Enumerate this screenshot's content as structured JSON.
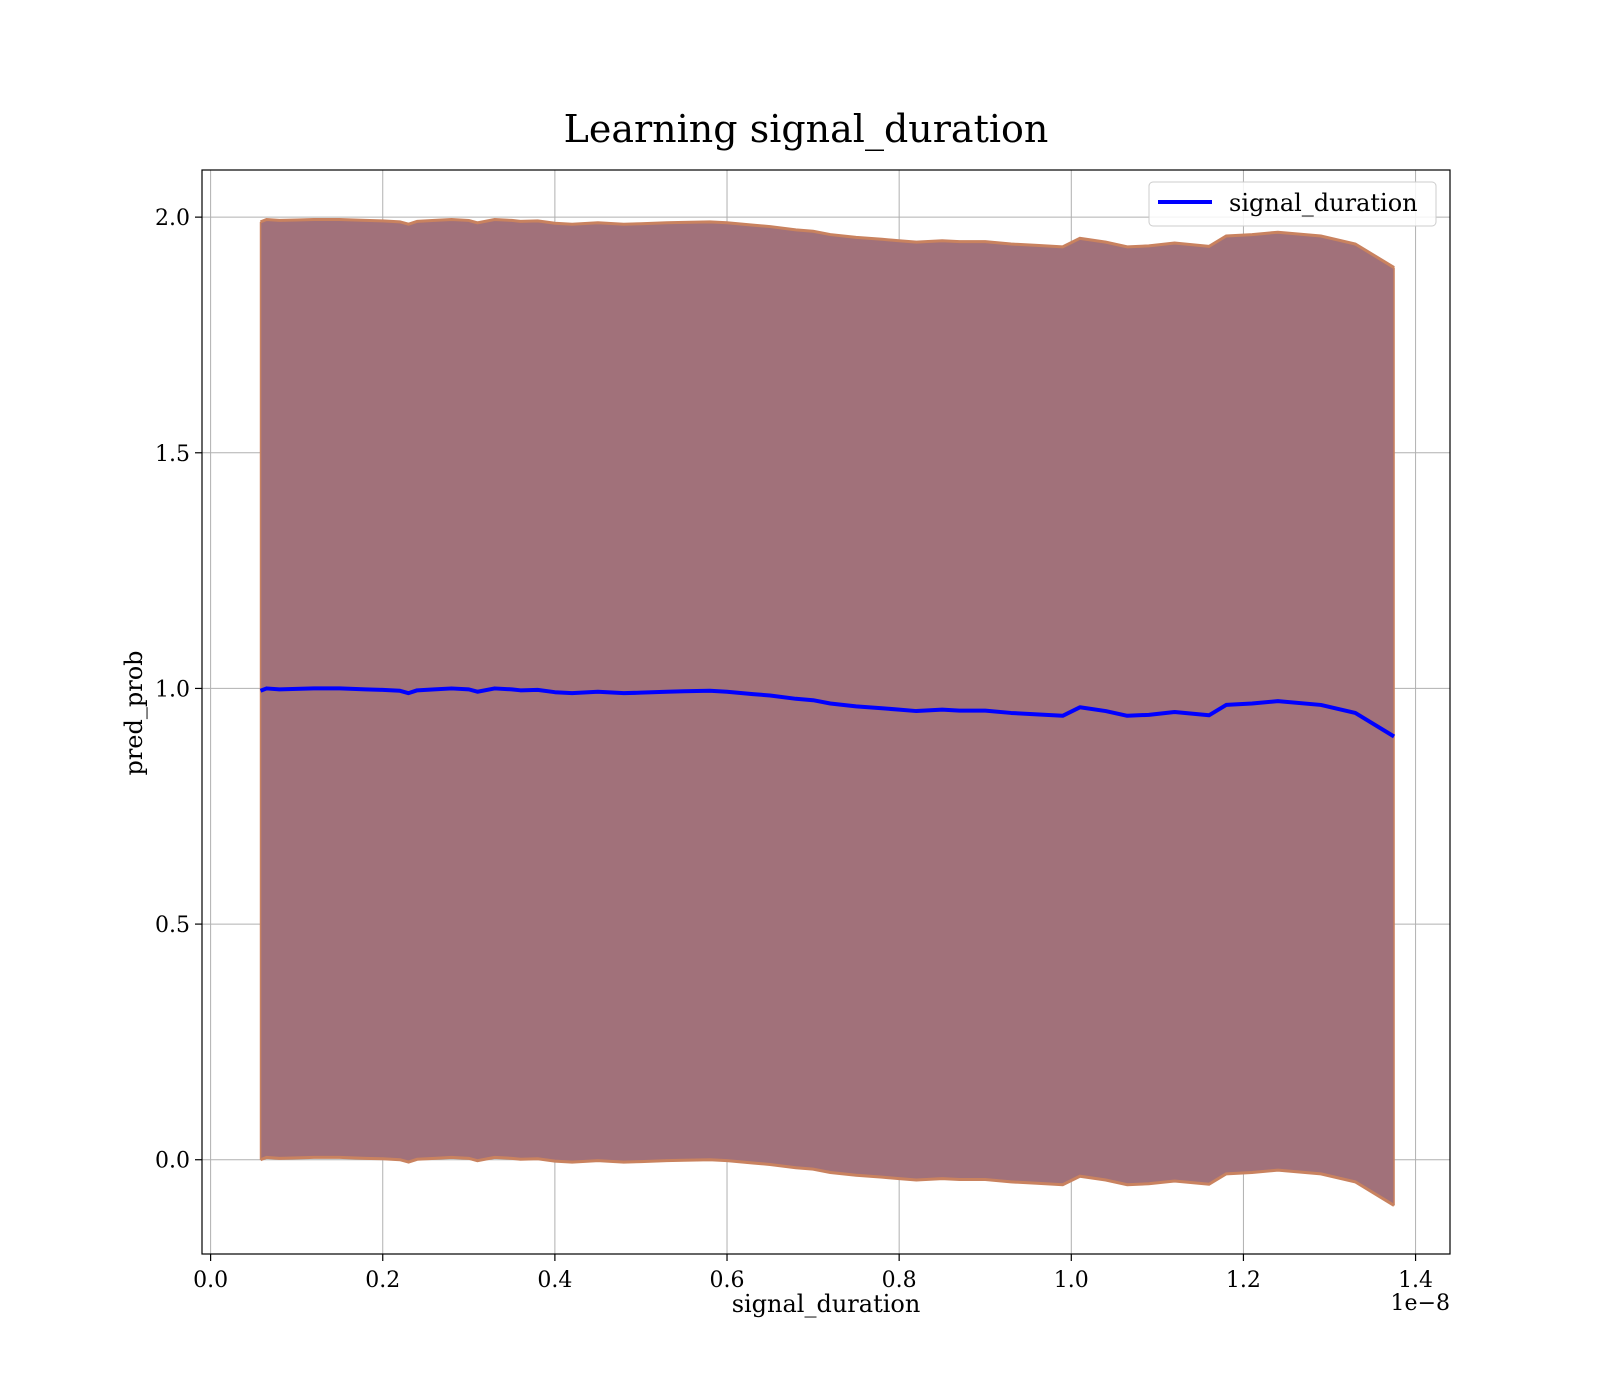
{
  "chart_data": {
    "type": "area",
    "title": "Learning signal_duration",
    "xlabel": "signal_duration",
    "ylabel": "pred_prob",
    "x_offset_label": "1e−8",
    "xlim": [
      -0.01,
      1.44
    ],
    "ylim": [
      -0.2,
      2.1
    ],
    "x_ticks": [
      0.0,
      0.2,
      0.4,
      0.6,
      0.8,
      1.0,
      1.2,
      1.4
    ],
    "x_tick_labels": [
      "0.0",
      "0.2",
      "0.4",
      "0.6",
      "0.8",
      "1.0",
      "1.2",
      "1.4"
    ],
    "y_ticks": [
      0.0,
      0.5,
      1.0,
      1.5,
      2.0
    ],
    "y_tick_labels": [
      "0.0",
      "0.5",
      "1.0",
      "1.5",
      "2.0"
    ],
    "grid": true,
    "legend": {
      "position": "top-right",
      "entries": [
        "signal_duration"
      ]
    },
    "colors": {
      "line": "#0000ff",
      "band_fill": "#a1717a",
      "band_edge": "#c9825f"
    },
    "x": [
      0.058,
      0.065,
      0.08,
      0.1,
      0.12,
      0.15,
      0.18,
      0.2,
      0.22,
      0.23,
      0.24,
      0.26,
      0.28,
      0.3,
      0.31,
      0.33,
      0.35,
      0.36,
      0.38,
      0.4,
      0.42,
      0.45,
      0.48,
      0.5,
      0.53,
      0.55,
      0.58,
      0.6,
      0.63,
      0.65,
      0.68,
      0.7,
      0.72,
      0.75,
      0.78,
      0.8,
      0.82,
      0.85,
      0.87,
      0.9,
      0.93,
      0.96,
      0.99,
      1.01,
      1.04,
      1.065,
      1.09,
      1.12,
      1.16,
      1.18,
      1.21,
      1.24,
      1.29,
      1.33,
      1.375
    ],
    "series": [
      {
        "name": "signal_duration",
        "values": [
          0.995,
          1.0,
          0.998,
          0.999,
          1.0,
          1.0,
          0.998,
          0.997,
          0.995,
          0.99,
          0.996,
          0.998,
          1.0,
          0.998,
          0.993,
          1.0,
          0.998,
          0.996,
          0.997,
          0.992,
          0.99,
          0.993,
          0.99,
          0.991,
          0.993,
          0.994,
          0.995,
          0.993,
          0.988,
          0.985,
          0.978,
          0.975,
          0.968,
          0.962,
          0.958,
          0.955,
          0.952,
          0.955,
          0.953,
          0.953,
          0.948,
          0.945,
          0.942,
          0.96,
          0.952,
          0.942,
          0.944,
          0.95,
          0.943,
          0.965,
          0.968,
          0.973,
          0.965,
          0.948,
          0.898
        ],
        "upper": [
          1.99,
          1.995,
          1.993,
          1.994,
          1.995,
          1.995,
          1.993,
          1.992,
          1.99,
          1.985,
          1.991,
          1.993,
          1.995,
          1.993,
          1.988,
          1.995,
          1.993,
          1.991,
          1.992,
          1.987,
          1.985,
          1.988,
          1.985,
          1.986,
          1.988,
          1.989,
          1.99,
          1.988,
          1.983,
          1.98,
          1.973,
          1.97,
          1.963,
          1.957,
          1.953,
          1.95,
          1.947,
          1.95,
          1.948,
          1.948,
          1.943,
          1.94,
          1.937,
          1.955,
          1.947,
          1.937,
          1.939,
          1.945,
          1.938,
          1.96,
          1.963,
          1.968,
          1.96,
          1.943,
          1.893
        ],
        "lower": [
          0.0,
          0.005,
          0.003,
          0.004,
          0.005,
          0.005,
          0.003,
          0.002,
          0.0,
          -0.005,
          0.001,
          0.003,
          0.005,
          0.003,
          -0.002,
          0.005,
          0.003,
          0.001,
          0.002,
          -0.003,
          -0.005,
          -0.002,
          -0.005,
          -0.004,
          -0.002,
          -0.001,
          0.0,
          -0.002,
          -0.007,
          -0.01,
          -0.017,
          -0.02,
          -0.027,
          -0.033,
          -0.037,
          -0.04,
          -0.043,
          -0.04,
          -0.042,
          -0.042,
          -0.047,
          -0.05,
          -0.053,
          -0.035,
          -0.043,
          -0.053,
          -0.051,
          -0.045,
          -0.052,
          -0.03,
          -0.027,
          -0.022,
          -0.03,
          -0.047,
          -0.097
        ]
      }
    ]
  }
}
